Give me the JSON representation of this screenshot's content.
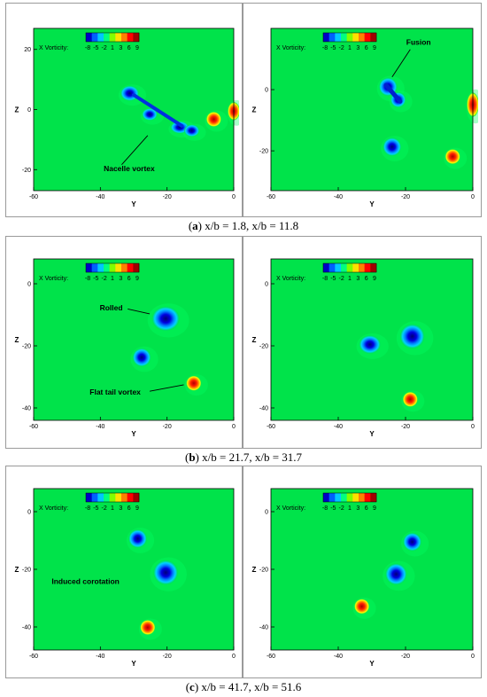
{
  "figure": {
    "colorbar": {
      "label": "X Vorticity:",
      "ticks": [
        "-8",
        "-5",
        "-2",
        "1",
        "3",
        "6",
        "9"
      ],
      "colors": [
        "#0000c8",
        "#0060ff",
        "#00c8ff",
        "#00ff80",
        "#80ff00",
        "#ffe000",
        "#ff8000",
        "#ff0000",
        "#a00000"
      ]
    },
    "axes": {
      "ylabel": "Z",
      "xlabel": "Y"
    },
    "background_color": "#00e34a",
    "rows": [
      {
        "caption_letter": "a",
        "caption_text": " x/b = 1.8, x/b = 11.8",
        "panels": [
          {
            "x_ticks": [
              "-60",
              "-40",
              "-20",
              "0"
            ],
            "y_ticks": [
              "20",
              "0",
              "-20"
            ],
            "xlim": [
              -60,
              0
            ],
            "ylim": [
              -27,
              27
            ],
            "annotations": [
              {
                "text": "Nacelle vortex"
              }
            ]
          },
          {
            "x_ticks": [
              "-60",
              "-40",
              "-20",
              "0"
            ],
            "y_ticks": [
              "0",
              "-20"
            ],
            "xlim": [
              -60,
              0
            ],
            "ylim": [
              -33,
              20
            ],
            "annotations": [
              {
                "text": "Fusion"
              }
            ]
          }
        ]
      },
      {
        "caption_letter": "b",
        "caption_text": " x/b = 21.7, x/b = 31.7",
        "panels": [
          {
            "x_ticks": [
              "-60",
              "-40",
              "-20",
              "0"
            ],
            "y_ticks": [
              "0",
              "-20",
              "-40"
            ],
            "xlim": [
              -60,
              0
            ],
            "ylim": [
              -44,
              8
            ],
            "annotations": [
              {
                "text": "Rolled"
              },
              {
                "text": "Flat tail vortex"
              }
            ]
          },
          {
            "x_ticks": [
              "-60",
              "-40",
              "-20",
              "0"
            ],
            "y_ticks": [
              "0",
              "-20",
              "-40"
            ],
            "xlim": [
              -60,
              0
            ],
            "ylim": [
              -44,
              8
            ],
            "annotations": []
          }
        ]
      },
      {
        "caption_letter": "c",
        "caption_text": " x/b = 41.7, x/b = 51.6",
        "panels": [
          {
            "x_ticks": [
              "-60",
              "-40",
              "-20",
              "0"
            ],
            "y_ticks": [
              "0",
              "-20",
              "-40"
            ],
            "xlim": [
              -60,
              0
            ],
            "ylim": [
              -48,
              8
            ],
            "annotations": [
              {
                "text": "Induced corotation"
              }
            ]
          },
          {
            "x_ticks": [
              "-60",
              "-40",
              "-20",
              "0"
            ],
            "y_ticks": [
              "0",
              "-20",
              "-40"
            ],
            "xlim": [
              -60,
              0
            ],
            "ylim": [
              -48,
              8
            ],
            "annotations": []
          }
        ]
      }
    ]
  }
}
